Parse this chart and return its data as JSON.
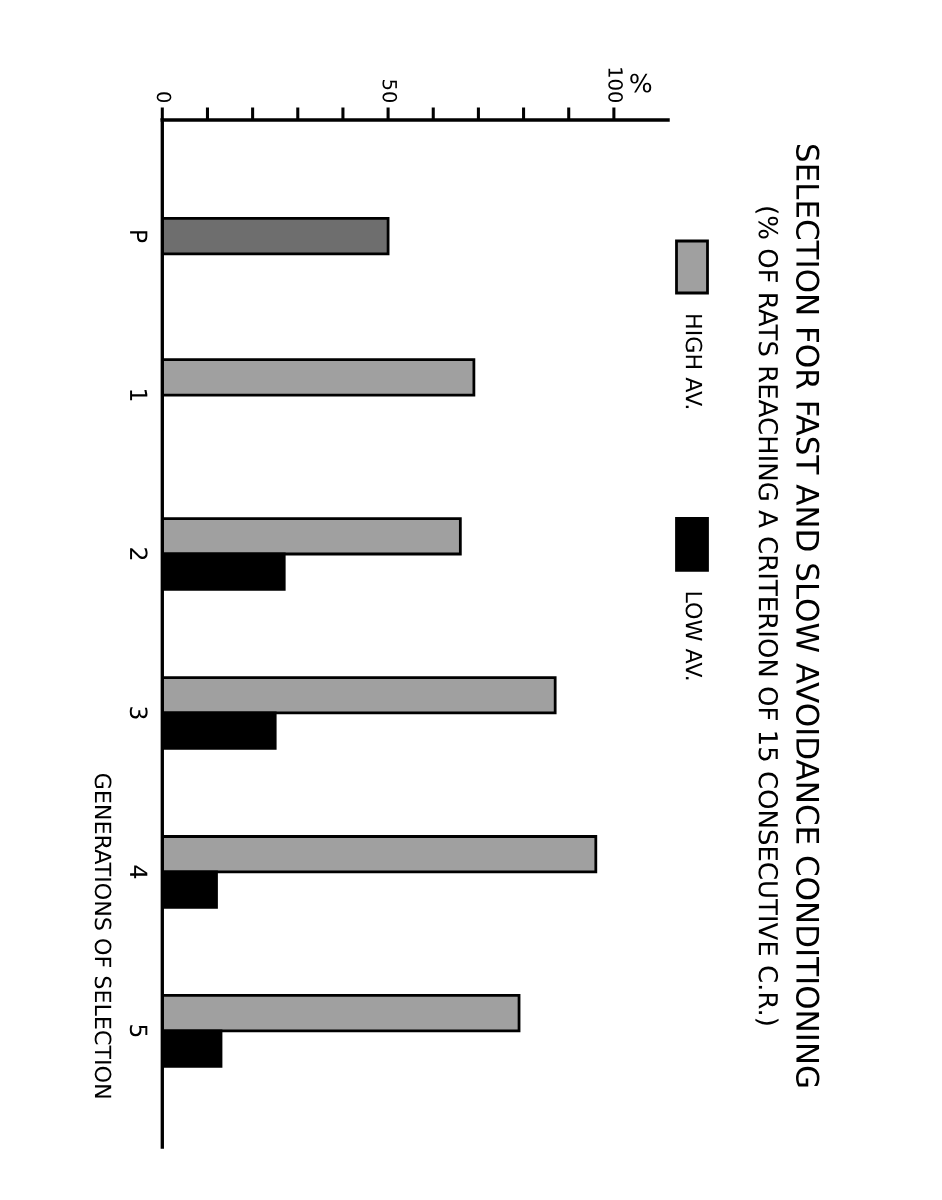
{
  "chart_data": {
    "type": "bar",
    "orientation": "horizontal",
    "title": "SELECTION FOR FAST AND SLOW AVOIDANCE CONDITIONING",
    "subtitle": "(% OF RATS REACHING A CRITERION OF 15 CONSECUTIVE C.R.)",
    "xlabel": "%",
    "ylabel": "GENERATIONS OF SELECTION",
    "categories": [
      "P",
      "1",
      "2",
      "3",
      "4",
      "5"
    ],
    "series": [
      {
        "color": "#6e6e6e",
        "values": [
          50,
          null,
          null,
          null,
          null,
          null
        ]
      },
      {
        "name": "HIGH AV.",
        "color": "#a0a0a0",
        "values": [
          null,
          69,
          66,
          87,
          96,
          79
        ]
      },
      {
        "name": "LOW AV.",
        "color": "#000000",
        "values": [
          null,
          0,
          27,
          25,
          12,
          13
        ]
      }
    ],
    "xlim": [
      0,
      112
    ],
    "xticks": [
      0,
      {
        "value": 10,
        "label": null
      },
      {
        "value": 20,
        "label": null
      },
      {
        "value": 30,
        "label": null
      },
      {
        "value": 40,
        "label": null
      },
      50,
      {
        "value": 60,
        "label": null
      },
      {
        "value": 70,
        "label": null
      },
      {
        "value": 80,
        "label": null
      },
      {
        "value": 90,
        "label": null
      },
      100
    ],
    "legend": "right"
  }
}
